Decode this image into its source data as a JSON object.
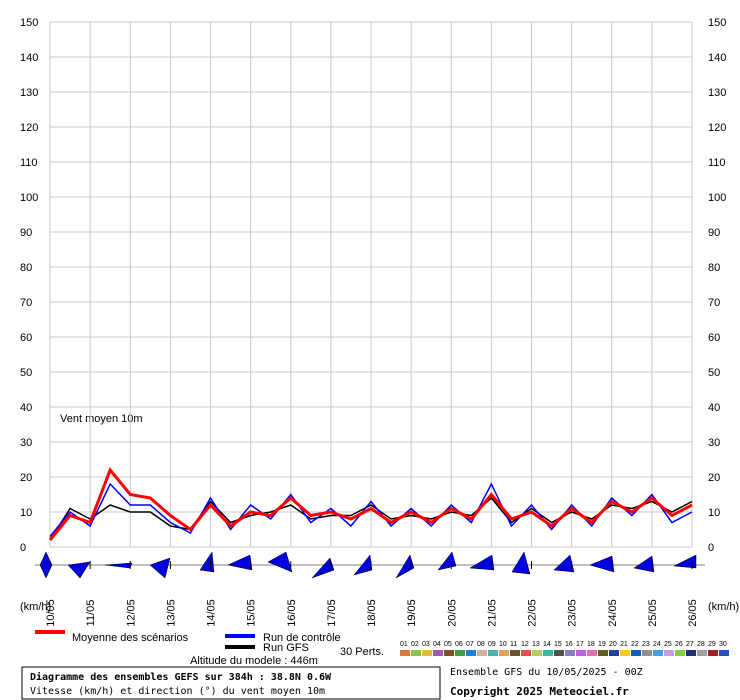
{
  "chart_data": {
    "type": "line",
    "annotation": "Vent moyen 10m",
    "unit_label": "(km/h)",
    "x": [
      0,
      12,
      24,
      36,
      48,
      60,
      72,
      84,
      96,
      108,
      120,
      132,
      144,
      156,
      168,
      180,
      192,
      204,
      216,
      228,
      240,
      252,
      264,
      276,
      288,
      300,
      312,
      324,
      336,
      348,
      360,
      372,
      384
    ],
    "xlim": [
      0,
      384
    ],
    "xticks": [
      {
        "value": 0,
        "label": "10/05"
      },
      {
        "value": 24,
        "label": "11/05"
      },
      {
        "value": 48,
        "label": "12/05"
      },
      {
        "value": 72,
        "label": "13/05"
      },
      {
        "value": 96,
        "label": "14/05"
      },
      {
        "value": 120,
        "label": "15/05"
      },
      {
        "value": 144,
        "label": "16/05"
      },
      {
        "value": 168,
        "label": "17/05"
      },
      {
        "value": 192,
        "label": "18/05"
      },
      {
        "value": 216,
        "label": "19/05"
      },
      {
        "value": 240,
        "label": "20/05"
      },
      {
        "value": 264,
        "label": "21/05"
      },
      {
        "value": 288,
        "label": "22/05"
      },
      {
        "value": 312,
        "label": "23/05"
      },
      {
        "value": 336,
        "label": "24/05"
      },
      {
        "value": 360,
        "label": "25/05"
      },
      {
        "value": 384,
        "label": "26/05"
      }
    ],
    "ylim": [
      0,
      150
    ],
    "yticks": [
      0,
      10,
      20,
      30,
      40,
      50,
      60,
      70,
      80,
      90,
      100,
      110,
      120,
      130,
      140,
      150
    ],
    "grid": true,
    "series": [
      {
        "name": "Moyenne des scénarios",
        "color": "#ff0000",
        "values": [
          2,
          9,
          7,
          22,
          15,
          14,
          9,
          5,
          12,
          6,
          10,
          9,
          14,
          9,
          10,
          8,
          11,
          7,
          10,
          7,
          11,
          8,
          15,
          8,
          10,
          6,
          11,
          7,
          13,
          10,
          14,
          9,
          12
        ]
      },
      {
        "name": "Run de contrôle",
        "color": "#0000ff",
        "values": [
          3,
          10,
          6,
          18,
          12,
          12,
          7,
          4,
          14,
          5,
          12,
          8,
          15,
          7,
          11,
          6,
          13,
          6,
          11,
          6,
          12,
          7,
          18,
          6,
          12,
          5,
          12,
          6,
          14,
          9,
          15,
          7,
          10
        ]
      },
      {
        "name": "Run GFS",
        "color": "#000000",
        "values": [
          2,
          11,
          8,
          12,
          10,
          10,
          6,
          5,
          13,
          7,
          9,
          10,
          12,
          8,
          9,
          9,
          12,
          8,
          9,
          8,
          10,
          9,
          14,
          7,
          11,
          7,
          10,
          8,
          12,
          11,
          13,
          10,
          13
        ]
      }
    ],
    "perturbations": {
      "label": "30 Perts.",
      "members": [
        {
          "name": "01",
          "color": "#d97a3c"
        },
        {
          "name": "02",
          "color": "#8fbf4f"
        },
        {
          "name": "03",
          "color": "#e0c030"
        },
        {
          "name": "04",
          "color": "#a05ab0"
        },
        {
          "name": "05",
          "color": "#7f4f1f"
        },
        {
          "name": "06",
          "color": "#3f9f3f"
        },
        {
          "name": "07",
          "color": "#1f7fdf"
        },
        {
          "name": "08",
          "color": "#d0b0a0"
        },
        {
          "name": "09",
          "color": "#4fafaf"
        },
        {
          "name": "10",
          "color": "#e0a060"
        },
        {
          "name": "11",
          "color": "#705030"
        },
        {
          "name": "12",
          "color": "#e05050"
        },
        {
          "name": "13",
          "color": "#b0d060"
        },
        {
          "name": "14",
          "color": "#30c0a0"
        },
        {
          "name": "15",
          "color": "#505050"
        },
        {
          "name": "16",
          "color": "#8080c0"
        },
        {
          "name": "17",
          "color": "#c060e0"
        },
        {
          "name": "18",
          "color": "#e070b0"
        },
        {
          "name": "19",
          "color": "#606020"
        },
        {
          "name": "20",
          "color": "#2040a0"
        },
        {
          "name": "21",
          "color": "#f0d000"
        },
        {
          "name": "22",
          "color": "#1060c0"
        },
        {
          "name": "23",
          "color": "#909090"
        },
        {
          "name": "24",
          "color": "#40a0e0"
        },
        {
          "name": "25",
          "color": "#c0a0e0"
        },
        {
          "name": "26",
          "color": "#80d040"
        },
        {
          "name": "27",
          "color": "#203080"
        },
        {
          "name": "28",
          "color": "#a0a0a0"
        },
        {
          "name": "29",
          "color": "#a02020"
        },
        {
          "name": "30",
          "color": "#2050d0"
        }
      ]
    },
    "altitude": "Altitude du modele : 446m"
  },
  "footer": {
    "title": "Diagramme des ensembles GEFS sur 384h : 38.8N 0.6W",
    "subtitle": "Vitesse (km/h) et direction (°) du vent moyen 10m",
    "ensemble": "Ensemble GFS du 10/05/2025 - 00Z",
    "copyright": "Copyright 2025 Meteociel.fr"
  }
}
